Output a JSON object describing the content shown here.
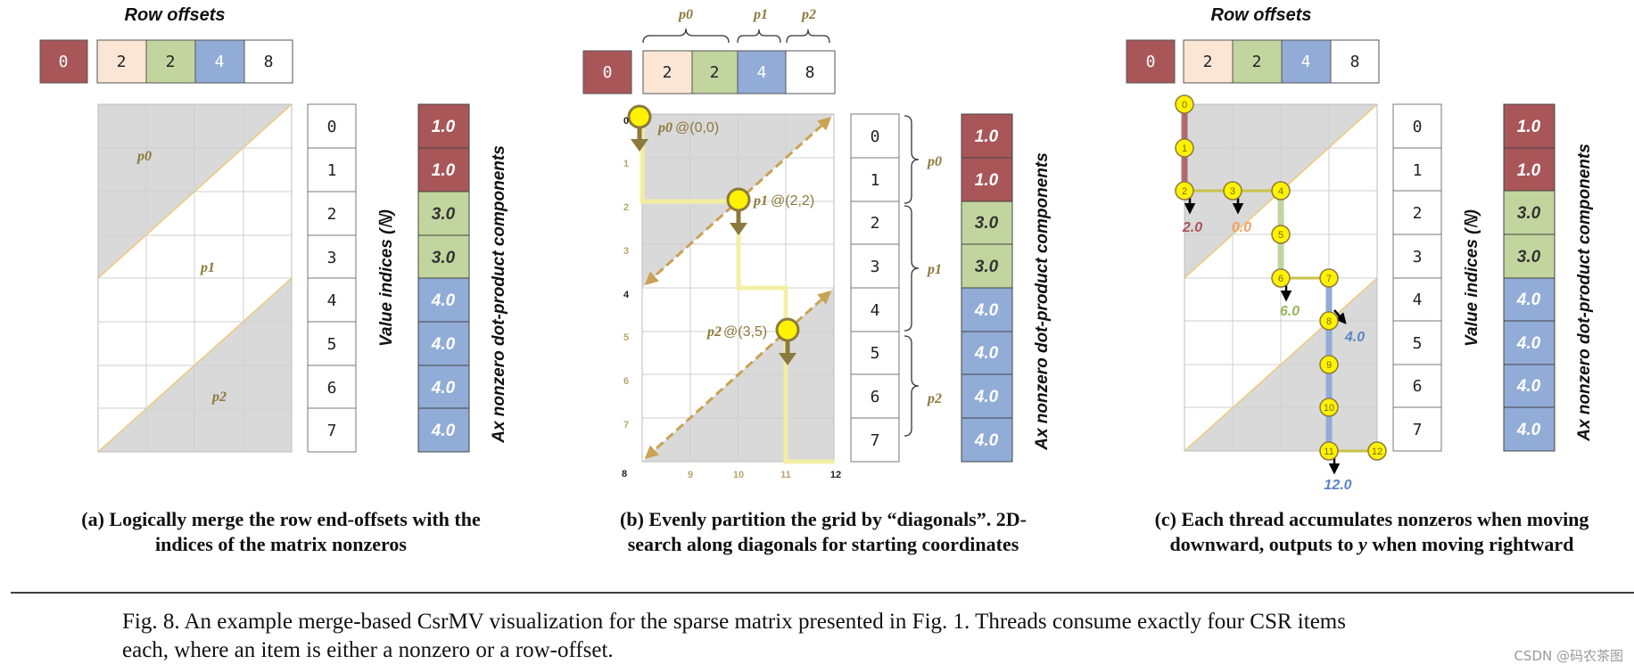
{
  "colors": {
    "red": "#a95659",
    "peach": "#fbe6d6",
    "green": "#c3d59f",
    "blue": "#91acd6",
    "gold": "#c9a254",
    "olive": "#8c7a3c",
    "shade": "#d9d9d9",
    "yellow": "#fff200"
  },
  "panel_a": {
    "title": "Row offsets",
    "row_offsets": [
      "0",
      "2",
      "2",
      "4",
      "8"
    ],
    "partition_labels": [
      "p0",
      "p1",
      "p2"
    ],
    "value_indices": [
      "0",
      "1",
      "2",
      "3",
      "4",
      "5",
      "6",
      "7"
    ],
    "value_indices_label": "Value indices (ℕ)",
    "ax_values": [
      "1.0",
      "1.0",
      "3.0",
      "3.0",
      "4.0",
      "4.0",
      "4.0",
      "4.0"
    ],
    "ax_label": "Ax nonzero dot-product components",
    "caption_line1": "(a) Logically merge the row end-offsets with the",
    "caption_line2": "indices of the matrix nonzeros"
  },
  "panel_b": {
    "partition_labels": [
      "p0",
      "p1",
      "p2"
    ],
    "row_offsets": [
      "0",
      "2",
      "2",
      "4",
      "8"
    ],
    "row_ticks": [
      "0",
      "1",
      "2",
      "3",
      "4",
      "5",
      "6",
      "7",
      "8"
    ],
    "col_ticks": [
      "9",
      "10",
      "11",
      "12"
    ],
    "start_coords": [
      "@(0,0)",
      "@(2,2)",
      "@(3,5)"
    ],
    "value_indices": [
      "0",
      "1",
      "2",
      "3",
      "4",
      "5",
      "6",
      "7"
    ],
    "ax_values": [
      "1.0",
      "1.0",
      "3.0",
      "3.0",
      "4.0",
      "4.0",
      "4.0",
      "4.0"
    ],
    "ax_label": "Ax nonzero dot-product components",
    "caption_line1": "(b) Evenly partition the grid by “diagonals”.  2D-",
    "caption_line2": "search along diagonals for starting coordinates"
  },
  "panel_c": {
    "title": "Row offsets",
    "row_offsets": [
      "0",
      "2",
      "2",
      "4",
      "8"
    ],
    "path_nodes": [
      "0",
      "1",
      "2",
      "3",
      "4",
      "5",
      "6",
      "7",
      "8",
      "9",
      "10",
      "11",
      "12"
    ],
    "outputs": [
      "2.0",
      "0.0",
      "6.0",
      "4.0",
      "12.0"
    ],
    "value_indices": [
      "0",
      "1",
      "2",
      "3",
      "4",
      "5",
      "6",
      "7"
    ],
    "value_indices_label": "Value indices (ℕ)",
    "ax_values": [
      "1.0",
      "1.0",
      "3.0",
      "3.0",
      "4.0",
      "4.0",
      "4.0",
      "4.0"
    ],
    "ax_label": "Ax nonzero dot-product components",
    "caption_line1": "(c) Each thread accumulates nonzeros when moving",
    "caption_line2a": "downward, outputs to ",
    "caption_line2y": "y",
    "caption_line2b": " when moving rightward"
  },
  "figure_caption": {
    "line1": "Fig. 8.  An example merge-based CsrMV visualization for the sparse matrix presented in Fig. 1.  Threads consume exactly four CSR items",
    "line2": "each, where an item is either a nonzero or a row-offset."
  },
  "watermark": "CSDN @码农茶图"
}
